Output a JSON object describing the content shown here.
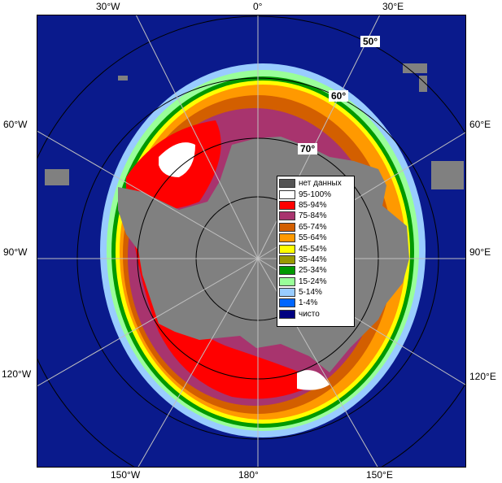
{
  "map": {
    "lon_labels": {
      "top_30w": "30°W",
      "top_0": "0°",
      "top_30e": "30°E",
      "left_60w": "60°W",
      "left_90w": "90°W",
      "left_120w": "120°W",
      "right_60e": "60°E",
      "right_90e": "90°E",
      "right_120e": "120°E",
      "bottom_150w": "150°W",
      "bottom_180": "180°",
      "bottom_150e": "150°E"
    },
    "lat_labels": {
      "lat_50": "50°",
      "lat_60": "60°",
      "lat_70": "70°"
    }
  },
  "legend": {
    "items": [
      {
        "label": "нет данных",
        "color": "#555555"
      },
      {
        "label": "95-100%",
        "color": "#ffffff"
      },
      {
        "label": "85-94%",
        "color": "#ff0000"
      },
      {
        "label": "75-84%",
        "color": "#a8346e"
      },
      {
        "label": "65-74%",
        "color": "#d35f00"
      },
      {
        "label": "55-64%",
        "color": "#ff9900"
      },
      {
        "label": "45-54%",
        "color": "#ffff00"
      },
      {
        "label": "35-44%",
        "color": "#999900"
      },
      {
        "label": "25-34%",
        "color": "#009900"
      },
      {
        "label": "15-24%",
        "color": "#99ff99"
      },
      {
        "label": "5-14%",
        "color": "#99ccff"
      },
      {
        "label": "1-4%",
        "color": "#0066ff"
      },
      {
        "label": "чисто",
        "color": "#000080"
      }
    ]
  },
  "colors": {
    "ocean": "#0a1a8c",
    "land": "#808080",
    "grid": "#c0c0c0",
    "circle": "#000000"
  }
}
